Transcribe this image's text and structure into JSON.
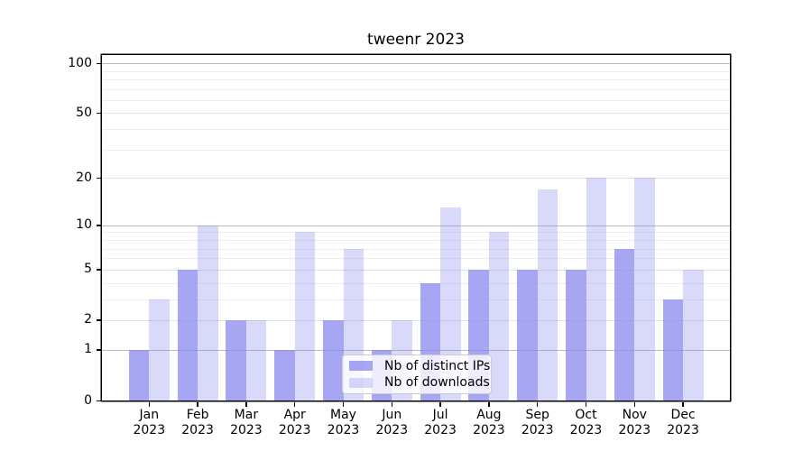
{
  "title": "tweenr 2023",
  "chart_data": {
    "type": "bar",
    "scale": "log1p",
    "title": "tweenr 2023",
    "categories": [
      "Jan",
      "Feb",
      "Mar",
      "Apr",
      "May",
      "Jun",
      "Jul",
      "Aug",
      "Sep",
      "Oct",
      "Nov",
      "Dec"
    ],
    "year_label": "2023",
    "series": [
      {
        "name": "Nb of distinct IPs",
        "color": "#8888ee",
        "alpha": 0.75,
        "values": [
          1,
          5,
          2,
          1,
          2,
          1,
          4,
          5,
          5,
          5,
          7,
          3
        ]
      },
      {
        "name": "Nb of downloads",
        "color": "#8888ee",
        "alpha": 0.32,
        "values": [
          3,
          10,
          2,
          9,
          7,
          2,
          13,
          9,
          17,
          20,
          20,
          5
        ]
      }
    ],
    "yticks": [
      0,
      1,
      2,
      5,
      10,
      20,
      50,
      100
    ],
    "strong_gridlines": [
      1,
      10,
      100
    ],
    "minor_gridlines": [
      3,
      4,
      6,
      7,
      8,
      9,
      30,
      40,
      60,
      70,
      80,
      90
    ],
    "ylim": [
      0,
      112
    ],
    "grid": true,
    "legend_position": "lower-center"
  }
}
